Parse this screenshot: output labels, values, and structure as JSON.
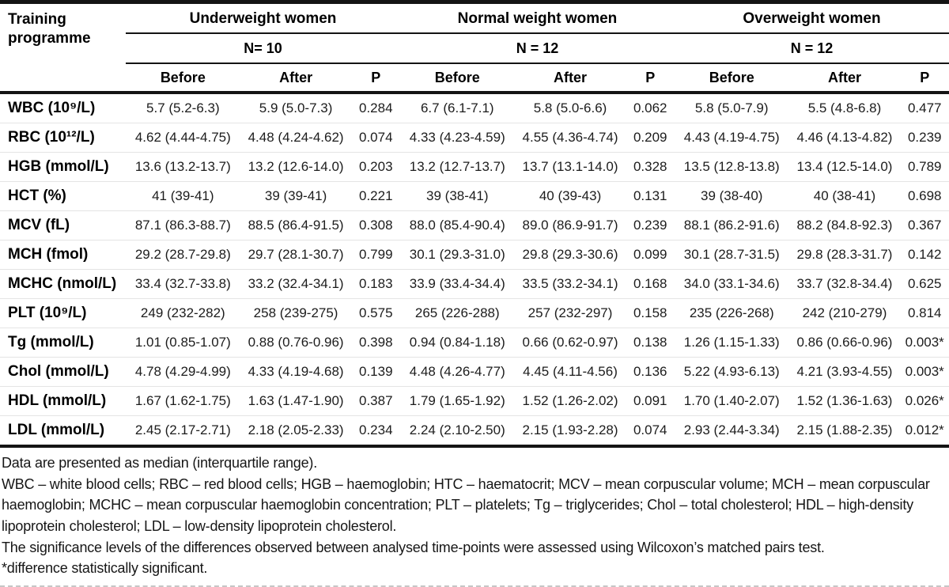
{
  "table": {
    "corner_label": "Training programme",
    "groups": [
      {
        "title": "Underweight women",
        "n": "N= 10"
      },
      {
        "title": "Normal weight women",
        "n": "N = 12"
      },
      {
        "title": "Overweight women",
        "n": "N = 12"
      }
    ],
    "sub_headers": [
      "Before",
      "After",
      "P"
    ],
    "rows": [
      {
        "label": "WBC (10⁹/L)",
        "cells": [
          "5.7 (5.2-6.3)",
          "5.9 (5.0-7.3)",
          "0.284",
          "6.7 (6.1-7.1)",
          "5.8 (5.0-6.6)",
          "0.062",
          "5.8 (5.0-7.9)",
          "5.5 (4.8-6.8)",
          "0.477"
        ]
      },
      {
        "label": "RBC (10¹²/L)",
        "cells": [
          "4.62 (4.44-4.75)",
          "4.48 (4.24-4.62)",
          "0.074",
          "4.33 (4.23-4.59)",
          "4.55 (4.36-4.74)",
          "0.209",
          "4.43 (4.19-4.75)",
          "4.46 (4.13-4.82)",
          "0.239"
        ]
      },
      {
        "label": "HGB (mmol/L)",
        "cells": [
          "13.6 (13.2-13.7)",
          "13.2 (12.6-14.0)",
          "0.203",
          "13.2 (12.7-13.7)",
          "13.7 (13.1-14.0)",
          "0.328",
          "13.5 (12.8-13.8)",
          "13.4 (12.5-14.0)",
          "0.789"
        ]
      },
      {
        "label": "HCT (%)",
        "cells": [
          "41 (39-41)",
          "39 (39-41)",
          "0.221",
          "39 (38-41)",
          "40 (39-43)",
          "0.131",
          "39 (38-40)",
          "40 (38-41)",
          "0.698"
        ]
      },
      {
        "label": "MCV (fL)",
        "cells": [
          "87.1 (86.3-88.7)",
          "88.5 (86.4-91.5)",
          "0.308",
          "88.0 (85.4-90.4)",
          "89.0 (86.9-91.7)",
          "0.239",
          "88.1 (86.2-91.6)",
          "88.2 (84.8-92.3)",
          "0.367"
        ]
      },
      {
        "label": "MCH (fmol)",
        "cells": [
          "29.2 (28.7-29.8)",
          "29.7 (28.1-30.7)",
          "0.799",
          "30.1 (29.3-31.0)",
          "29.8 (29.3-30.6)",
          "0.099",
          "30.1 (28.7-31.5)",
          "29.8 (28.3-31.7)",
          "0.142"
        ]
      },
      {
        "label": "MCHC (nmol/L)",
        "cells": [
          "33.4 (32.7-33.8)",
          "33.2 (32.4-34.1)",
          "0.183",
          "33.9 (33.4-34.4)",
          "33.5 (33.2-34.1)",
          "0.168",
          "34.0 (33.1-34.6)",
          "33.7 (32.8-34.4)",
          "0.625"
        ]
      },
      {
        "label": "PLT (10⁹/L)",
        "cells": [
          "249 (232-282)",
          "258 (239-275)",
          "0.575",
          "265 (226-288)",
          "257 (232-297)",
          "0.158",
          "235 (226-268)",
          "242 (210-279)",
          "0.814"
        ]
      },
      {
        "label": "Tg (mmol/L)",
        "cells": [
          "1.01 (0.85-1.07)",
          "0.88 (0.76-0.96)",
          "0.398",
          "0.94 (0.84-1.18)",
          "0.66 (0.62-0.97)",
          "0.138",
          "1.26 (1.15-1.33)",
          "0.86 (0.66-0.96)",
          "0.003*"
        ]
      },
      {
        "label": "Chol (mmol/L)",
        "cells": [
          "4.78 (4.29-4.99)",
          "4.33 (4.19-4.68)",
          "0.139",
          "4.48 (4.26-4.77)",
          "4.45 (4.11-4.56)",
          "0.136",
          "5.22 (4.93-6.13)",
          "4.21 (3.93-4.55)",
          "0.003*"
        ]
      },
      {
        "label": "HDL (mmol/L)",
        "cells": [
          "1.67 (1.62-1.75)",
          "1.63 (1.47-1.90)",
          "0.387",
          "1.79 (1.65-1.92)",
          "1.52 (1.26-2.02)",
          "0.091",
          "1.70 (1.40-2.07)",
          "1.52 (1.36-1.63)",
          "0.026*"
        ]
      },
      {
        "label": "LDL (mmol/L)",
        "cells": [
          "2.45 (2.17-2.71)",
          "2.18 (2.05-2.33)",
          "0.234",
          "2.24 (2.10-2.50)",
          "2.15 (1.93-2.28)",
          "0.074",
          "2.93 (2.44-3.34)",
          "2.15 (1.88-2.35)",
          "0.012*"
        ]
      }
    ]
  },
  "footnotes": [
    "Data are presented as median (interquartile range).",
    "WBC – white blood cells; RBC – red blood cells; HGB – haemoglobin; HTC – haematocrit; MCV – mean corpuscular volume; MCH – mean corpuscular haemoglobin; MCHC – mean corpuscular haemoglobin concentration; PLT – platelets; Tg – triglycerides; Chol – total cholesterol; HDL – high-density lipoprotein cholesterol; LDL – low-density lipoprotein cholesterol.",
    "The significance levels of the differences observed between analysed time-points were assessed using Wilcoxon’s matched pairs test.",
    "*difference statistically significant."
  ]
}
